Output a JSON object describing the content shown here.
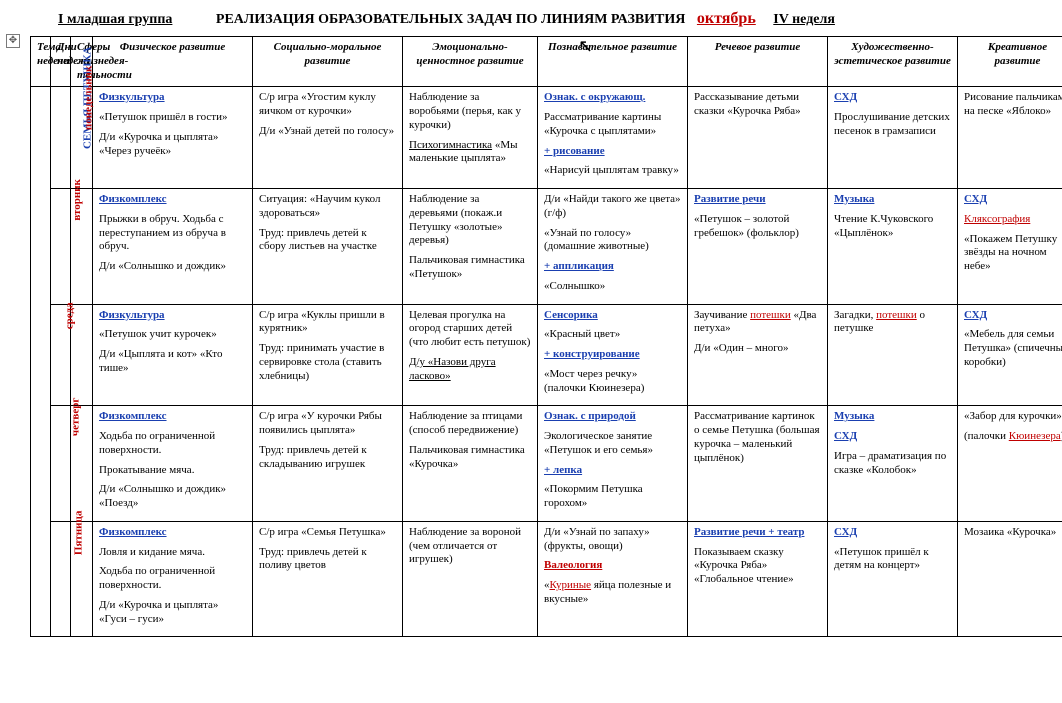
{
  "header": {
    "group": "I младшая группа",
    "title": "РЕАЛИЗАЦИЯ ОБРАЗОВАТЕЛЬНЫХ ЗАДАЧ ПО ЛИНИЯМ РАЗВИТИЯ",
    "month": "октябрь",
    "week": "IV  неделя"
  },
  "columns": {
    "theme": "Тема недели",
    "days": "Дни недели",
    "sphere": "Сферы жизнедея-тельности",
    "c1": "Физическое развитие",
    "c2": "Социально-моральное развитие",
    "c3": "Эмоционально-ценностное развитие",
    "c4": "Познавательное развитие",
    "c5": "Речевое развитие",
    "c6": "Художественно-эстетическое развитие",
    "c7": "Креативное развитие"
  },
  "theme": "СЕМЬЯ ПЕТУШКА",
  "days": [
    "понедельник",
    "вторник",
    "среда",
    "четверг",
    "Пятница"
  ],
  "style": {
    "accent_blue": "#1a3fb0",
    "accent_red": "#c00000",
    "border": "#000000",
    "background": "#ffffff",
    "font_family": "Times New Roman",
    "cell_fontsize_pt": 8.5,
    "header_fontsize_pt": 9.5,
    "title_fontsize_pt": 11
  },
  "rows": [
    {
      "phys": {
        "head": "Физкультура",
        "l1": "«Петушок пришёл в гости»",
        "l2": "Д/и «Курочка и цыплята» «Через ручеёк»"
      },
      "soc": {
        "l1": "С/р игра «Угостим куклу яичком от курочки»",
        "l2": "Д/и «Узнай детей по голосу»"
      },
      "emo": {
        "l1": "Наблюдение за воробьями (перья, как у курочки)",
        "l2a": "Психогимнастика",
        "l2b": "«Мы маленькие цыплята»"
      },
      "cog": {
        "head": "Ознак. с окружающ.",
        "l1": "Рассматривание картины «Курочка с цыплятами»",
        "plus": "+ рисование",
        "l2": "«Нарисуй цыплятам травку»"
      },
      "speech": {
        "l1": "Рассказывание детьми сказки «Курочка Ряба»"
      },
      "art": {
        "head": "СХД",
        "l1": "Прослушивание детских песенок в грамзаписи"
      },
      "creat": {
        "l1": "Рисование пальчиками на песке «Яблоко»"
      }
    },
    {
      "phys": {
        "head": "Физкомплекс",
        "l1": "Прыжки в обруч. Ходьба с переступанием из обруча в обруч.",
        "l2": "Д/и «Солнышко и дождик»"
      },
      "soc": {
        "l1": "Ситуация: «Научим кукол здороваться»",
        "l2": "Труд: привлечь детей к сбору листьев на участке"
      },
      "emo": {
        "l1": "Наблюдение за деревьями (покаж.и Петушку «золотые» деревья)",
        "l2": "Пальчиковая гимнастика «Петушок»"
      },
      "cog": {
        "l1": "Д/и «Найди такого же цвета» (г/ф)",
        "l2": "«Узнай по голосу» (домашние животные)",
        "plus": "+ аппликация",
        "l3": "«Солнышко»"
      },
      "speech": {
        "head": "Развитие речи",
        "l1": "«Петушок – золотой гребешок» (фольклор)"
      },
      "art": {
        "head": "Музыка",
        "l1": "Чтение К.Чуковского «Цыплёнок»"
      },
      "creat": {
        "head": "СХД",
        "l1a": "Кляксография",
        "l1b": "«Покажем Петушку звёзды на ночном небе»"
      }
    },
    {
      "phys": {
        "head": "Физкультура",
        "l1": "«Петушок учит курочек»",
        "l2": "Д/и «Цыплята и кот» «Кто тише»"
      },
      "soc": {
        "l1": "С/р игра «Куклы пришли в курятник»",
        "l2": "Труд: принимать участие в сервировке стола (ставить хлебницы)"
      },
      "emo": {
        "l1": "Целевая прогулка на огород старших детей (что любит есть петушок)",
        "l2": "Д/у «Назови друга ласково»"
      },
      "cog": {
        "head": "Сенсорика",
        "l1": "«Красный цвет»",
        "plus": "+ конструирование",
        "l2": "«Мост через речку» (палочки Кюинезера)"
      },
      "speech": {
        "l1a": "Заучивание",
        "l1b": "потешки",
        "l1c": "«Два петуха»",
        "l2": "Д/и «Один – много»"
      },
      "art": {
        "l1a": "Загадки,",
        "l1b": "потешки",
        "l1c": "о петушке"
      },
      "creat": {
        "head": "СХД",
        "l1": "«Мебель для семьи Петушка» (спичечные коробки)"
      }
    },
    {
      "phys": {
        "head": "Физкомплекс",
        "l1": "Ходьба по ограниченной поверхности.",
        "l2": "Прокатывание мяча.",
        "l3": "Д/и «Солнышко и дождик» «Поезд»"
      },
      "soc": {
        "l1": "С/р игра «У курочки Рябы появились цыплята»",
        "l2": "Труд: привлечь детей к складыванию игрушек"
      },
      "emo": {
        "l1": "Наблюдение за птицами (способ передвижение)",
        "l2": "Пальчиковая гимнастика «Курочка»"
      },
      "cog": {
        "head": "Ознак. с природой",
        "l1": "Экологическое занятие «Петушок и его семья»",
        "plus": "+ лепка",
        "l2": "«Покормим Петушка горохом»"
      },
      "speech": {
        "l1": "Рассматривание картинок о семье Петушка (большая курочка – маленький цыплёнок)"
      },
      "art": {
        "head1": "Музыка",
        "head2": "СХД",
        "l1": "Игра – драматизация по сказке «Колобок»"
      },
      "creat": {
        "l1": "«Забор для курочки»",
        "l2a": "(палочки ",
        "l2b": "Кюинезера",
        "l2c": ")"
      }
    },
    {
      "phys": {
        "head": "Физкомплекс",
        "l1": "Ловля и кидание мяча.",
        "l2": "Ходьба по ограниченной поверхности.",
        "l3": "Д/и «Курочка и цыплята» «Гуси – гуси»"
      },
      "soc": {
        "l1": "С/р игра «Семья Петушка»",
        "l2": "Труд: привлечь детей к поливу цветов"
      },
      "emo": {
        "l1": "Наблюдение за вороной (чем отличается от игрушек)"
      },
      "cog": {
        "l1": "Д/и «Узнай по запаху» (фрукты, овощи)",
        "head": "Валеология",
        "l2a": "«",
        "l2b": "Куриные",
        "l2c": "яйца полезные и вкусные»"
      },
      "speech": {
        "head": "Развитие речи + театр",
        "l1": "Показываем сказку «Курочка Ряба» «Глобальное чтение»"
      },
      "art": {
        "head": "СХД",
        "l1": "«Петушок пришёл к детям на концерт»"
      },
      "creat": {
        "l1": "Мозаика «Курочка»"
      }
    }
  ]
}
